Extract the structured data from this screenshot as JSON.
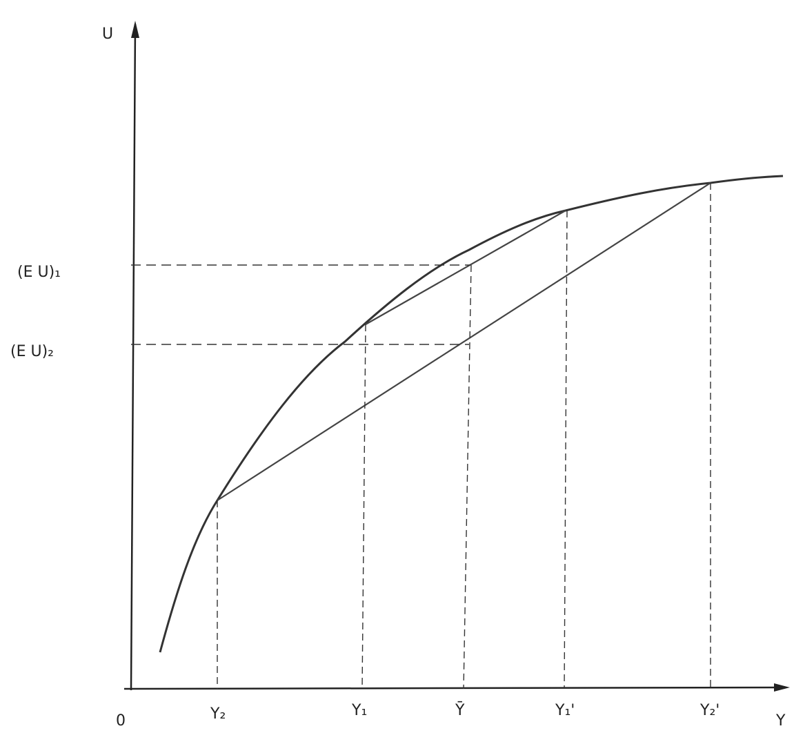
{
  "axes": {
    "y_label": "U",
    "x_label": "Y",
    "origin": "0"
  },
  "x_labels": [
    "Y₂",
    "Y₁",
    "Ȳ",
    "Y₁'",
    "Y₂'"
  ],
  "y_labels": [
    "(E U)₁",
    "(E U)₂"
  ]
}
